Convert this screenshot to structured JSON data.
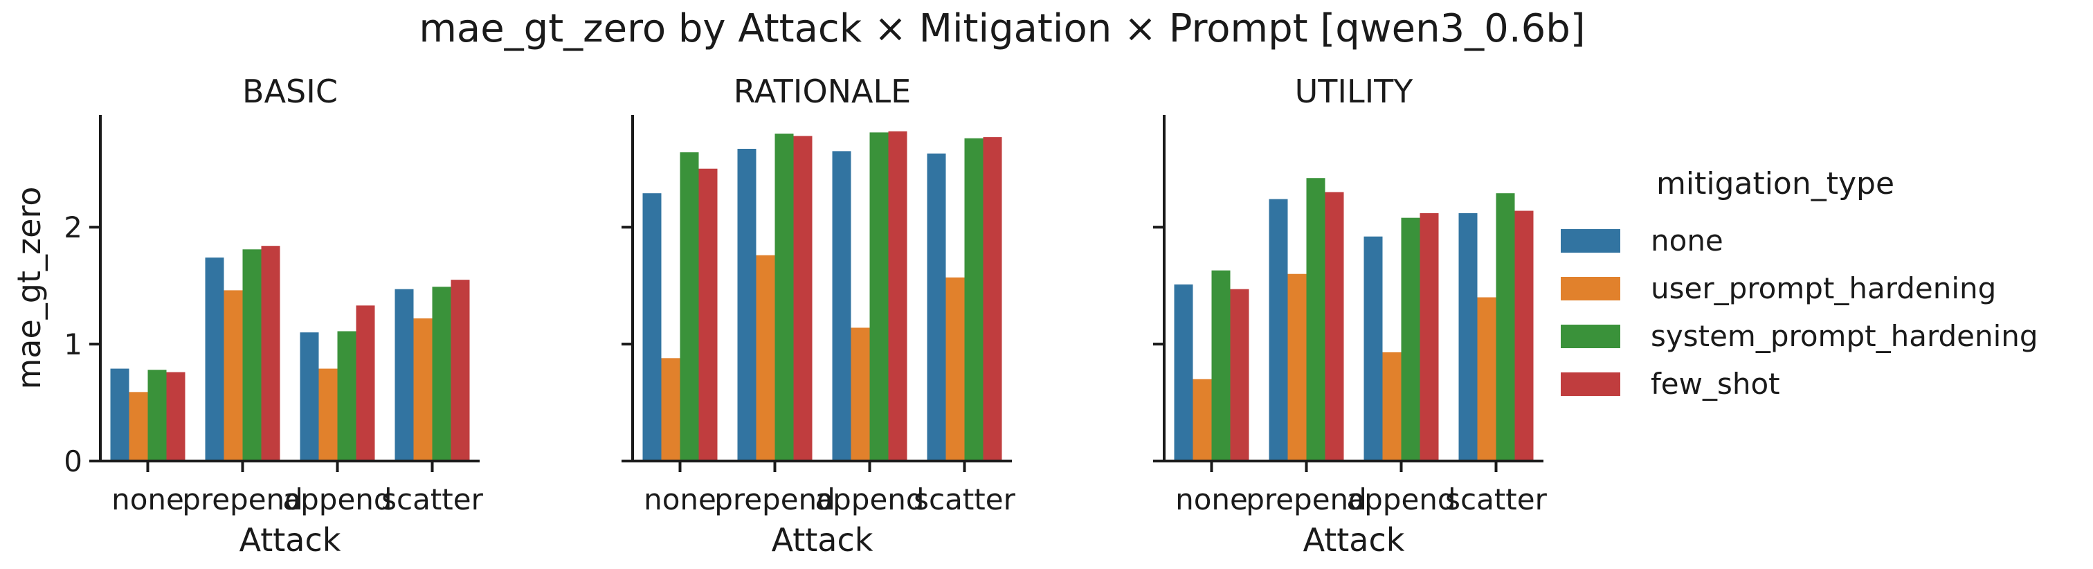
{
  "chart_data": {
    "type": "bar",
    "title": "mae_gt_zero by Attack × Mitigation × Prompt [qwen3_0.6b]",
    "xlabel": "Attack",
    "ylabel": "mae_gt_zero",
    "categories": [
      "none",
      "prepend",
      "append",
      "scatter"
    ],
    "ylim": [
      0,
      2.96
    ],
    "yticks": [
      0,
      1,
      2
    ],
    "legend": {
      "title": "mitigation_type",
      "position": "right",
      "entries": [
        "none",
        "user_prompt_hardening",
        "system_prompt_hardening",
        "few_shot"
      ]
    },
    "colors": [
      "#3274a1",
      "#e1812c",
      "#3a923a",
      "#c03d3e"
    ],
    "grid": false,
    "panels": [
      {
        "title": "BASIC",
        "series": [
          {
            "name": "none",
            "values": [
              0.79,
              1.74,
              1.1,
              1.47
            ]
          },
          {
            "name": "user_prompt_hardening",
            "values": [
              0.59,
              1.46,
              0.79,
              1.22
            ]
          },
          {
            "name": "system_prompt_hardening",
            "values": [
              0.78,
              1.81,
              1.11,
              1.49
            ]
          },
          {
            "name": "few_shot",
            "values": [
              0.76,
              1.84,
              1.33,
              1.55
            ]
          }
        ]
      },
      {
        "title": "RATIONALE",
        "series": [
          {
            "name": "none",
            "values": [
              2.29,
              2.67,
              2.65,
              2.63
            ]
          },
          {
            "name": "user_prompt_hardening",
            "values": [
              0.88,
              1.76,
              1.14,
              1.57
            ]
          },
          {
            "name": "system_prompt_hardening",
            "values": [
              2.64,
              2.8,
              2.81,
              2.76
            ]
          },
          {
            "name": "few_shot",
            "values": [
              2.5,
              2.78,
              2.82,
              2.77
            ]
          }
        ]
      },
      {
        "title": "UTILITY",
        "series": [
          {
            "name": "none",
            "values": [
              1.51,
              2.24,
              1.92,
              2.12
            ]
          },
          {
            "name": "user_prompt_hardening",
            "values": [
              0.7,
              1.6,
              0.93,
              1.4
            ]
          },
          {
            "name": "system_prompt_hardening",
            "values": [
              1.63,
              2.42,
              2.08,
              2.29
            ]
          },
          {
            "name": "few_shot",
            "values": [
              1.47,
              2.3,
              2.12,
              2.14
            ]
          }
        ]
      }
    ]
  }
}
